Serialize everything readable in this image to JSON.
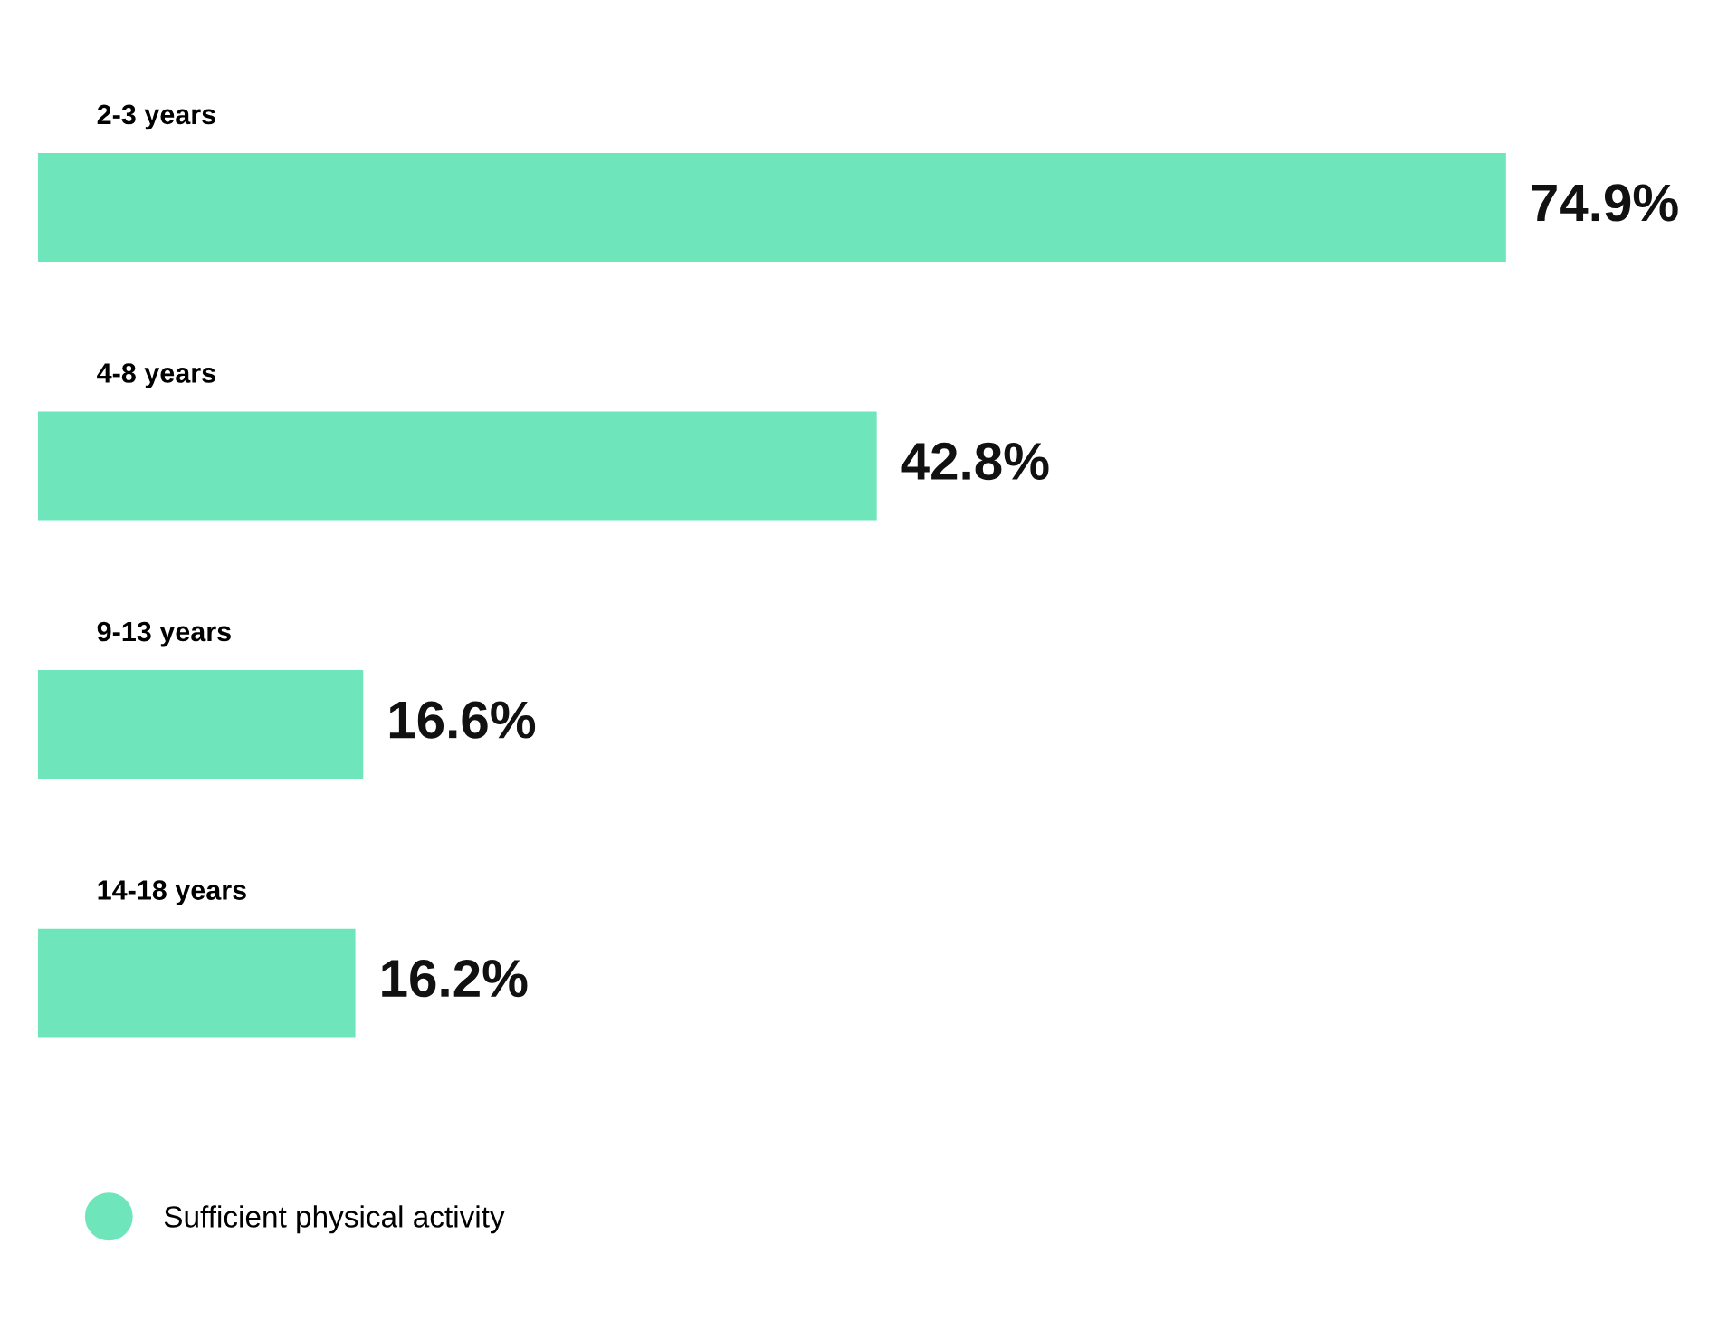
{
  "chart_data": {
    "type": "bar",
    "orientation": "horizontal",
    "categories": [
      "2-3 years",
      "4-8 years",
      "9-13 years",
      "14-18 years"
    ],
    "series": [
      {
        "name": "Sufficient physical activity",
        "color": "#6ee5bb",
        "values": [
          74.9,
          42.8,
          16.6,
          16.2
        ],
        "value_labels": [
          "74.9%",
          "42.8%",
          "16.6%",
          "16.2%"
        ]
      }
    ],
    "legend": "bottom left"
  }
}
